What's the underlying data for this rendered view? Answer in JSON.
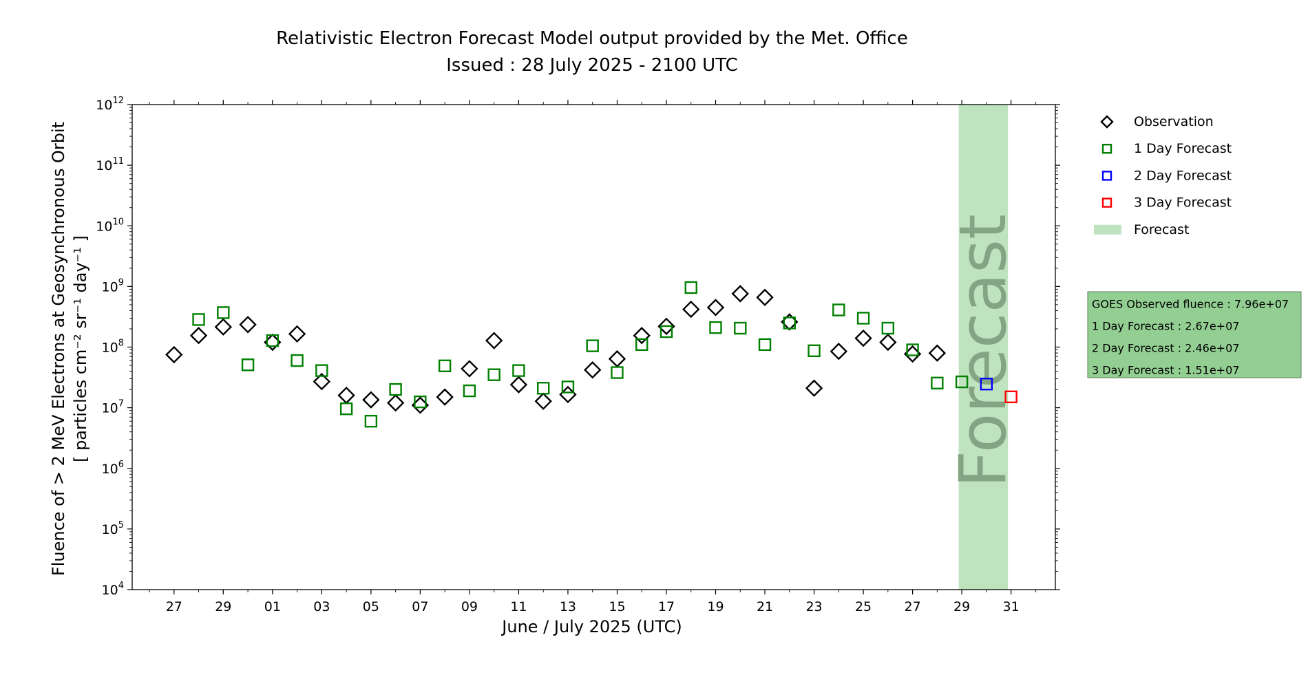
{
  "colors": {
    "observation": "#000000",
    "day1": "#008000",
    "day2": "#0000ff",
    "day3": "#ff0000",
    "forecast_band": "#bfe3bf",
    "forecast_word": "#7a9a7a",
    "info_box": "#93cf93"
  },
  "chart_data": {
    "type": "scatter",
    "title": "Relativistic Electron Forecast Model output provided by the Met. Office",
    "subtitle": "Issued : 28 July 2025 - 2100 UTC",
    "xlabel": "June / July 2025 (UTC)",
    "ylabel_line1": "Fluence of > 2 MeV Electrons at Geosynchronous Orbit",
    "ylabel_line2": "[ particles cm⁻² sr⁻¹ day⁻¹ ]",
    "y_scale": "log",
    "ylim": [
      10000,
      1000000000000
    ],
    "y_ticks": [
      {
        "value": 10000,
        "base": "10",
        "exp": "4"
      },
      {
        "value": 100000,
        "base": "10",
        "exp": "5"
      },
      {
        "value": 1000000,
        "base": "10",
        "exp": "6"
      },
      {
        "value": 10000000,
        "base": "10",
        "exp": "7"
      },
      {
        "value": 100000000,
        "base": "10",
        "exp": "8"
      },
      {
        "value": 1000000000,
        "base": "10",
        "exp": "9"
      },
      {
        "value": 10000000000,
        "base": "10",
        "exp": "10"
      },
      {
        "value": 100000000000,
        "base": "10",
        "exp": "11"
      },
      {
        "value": 1000000000000,
        "base": "10",
        "exp": "12"
      }
    ],
    "xlim": [
      "2025-06-25T07:12",
      "2025-08-01T19:12"
    ],
    "x_ticks": [
      {
        "date": "2025-06-27",
        "label": "27"
      },
      {
        "date": "2025-06-29",
        "label": "29"
      },
      {
        "date": "2025-07-01",
        "label": "01"
      },
      {
        "date": "2025-07-03",
        "label": "03"
      },
      {
        "date": "2025-07-05",
        "label": "05"
      },
      {
        "date": "2025-07-07",
        "label": "07"
      },
      {
        "date": "2025-07-09",
        "label": "09"
      },
      {
        "date": "2025-07-11",
        "label": "11"
      },
      {
        "date": "2025-07-13",
        "label": "13"
      },
      {
        "date": "2025-07-15",
        "label": "15"
      },
      {
        "date": "2025-07-17",
        "label": "17"
      },
      {
        "date": "2025-07-19",
        "label": "19"
      },
      {
        "date": "2025-07-21",
        "label": "21"
      },
      {
        "date": "2025-07-23",
        "label": "23"
      },
      {
        "date": "2025-07-25",
        "label": "25"
      },
      {
        "date": "2025-07-27",
        "label": "27"
      },
      {
        "date": "2025-07-29",
        "label": "29"
      },
      {
        "date": "2025-07-31",
        "label": "31"
      }
    ],
    "grid": false,
    "legend_position": "outside-right-top",
    "forecast_band": {
      "start": "2025-07-28T21:00",
      "end": "2025-07-30T21:00",
      "label": "Forecast"
    },
    "series": [
      {
        "name": "Observation",
        "marker": "diamond",
        "color": "#000000",
        "points": [
          {
            "x": "2025-06-27",
            "y": 75000000
          },
          {
            "x": "2025-06-28",
            "y": 155000000
          },
          {
            "x": "2025-06-29",
            "y": 215000000
          },
          {
            "x": "2025-06-30",
            "y": 235000000
          },
          {
            "x": "2025-07-01",
            "y": 120000000
          },
          {
            "x": "2025-07-02",
            "y": 165000000
          },
          {
            "x": "2025-07-03",
            "y": 27000000
          },
          {
            "x": "2025-07-04",
            "y": 16000000
          },
          {
            "x": "2025-07-05",
            "y": 13500000
          },
          {
            "x": "2025-07-06",
            "y": 12000000
          },
          {
            "x": "2025-07-07",
            "y": 11000000
          },
          {
            "x": "2025-07-08",
            "y": 15000000
          },
          {
            "x": "2025-07-09",
            "y": 44000000
          },
          {
            "x": "2025-07-10",
            "y": 128000000
          },
          {
            "x": "2025-07-11",
            "y": 24000000
          },
          {
            "x": "2025-07-12",
            "y": 12800000
          },
          {
            "x": "2025-07-13",
            "y": 16500000
          },
          {
            "x": "2025-07-14",
            "y": 42000000
          },
          {
            "x": "2025-07-15",
            "y": 64000000
          },
          {
            "x": "2025-07-16",
            "y": 155000000
          },
          {
            "x": "2025-07-17",
            "y": 220000000
          },
          {
            "x": "2025-07-18",
            "y": 420000000
          },
          {
            "x": "2025-07-19",
            "y": 450000000
          },
          {
            "x": "2025-07-20",
            "y": 760000000
          },
          {
            "x": "2025-07-21",
            "y": 660000000
          },
          {
            "x": "2025-07-22",
            "y": 260000000
          },
          {
            "x": "2025-07-23",
            "y": 21000000
          },
          {
            "x": "2025-07-24",
            "y": 85000000
          },
          {
            "x": "2025-07-25",
            "y": 140000000
          },
          {
            "x": "2025-07-26",
            "y": 120000000
          },
          {
            "x": "2025-07-27",
            "y": 77000000
          },
          {
            "x": "2025-07-28",
            "y": 79600000
          }
        ]
      },
      {
        "name": "1 Day Forecast",
        "marker": "square",
        "color": "#008000",
        "points": [
          {
            "x": "2025-06-28",
            "y": 285000000
          },
          {
            "x": "2025-06-29",
            "y": 370000000
          },
          {
            "x": "2025-06-30",
            "y": 51000000
          },
          {
            "x": "2025-07-01",
            "y": 128000000
          },
          {
            "x": "2025-07-02",
            "y": 60000000
          },
          {
            "x": "2025-07-03",
            "y": 41000000
          },
          {
            "x": "2025-07-04",
            "y": 9600000
          },
          {
            "x": "2025-07-05",
            "y": 6000000
          },
          {
            "x": "2025-07-06",
            "y": 20000000
          },
          {
            "x": "2025-07-07",
            "y": 12500000
          },
          {
            "x": "2025-07-08",
            "y": 49000000
          },
          {
            "x": "2025-07-09",
            "y": 19000000
          },
          {
            "x": "2025-07-10",
            "y": 35000000
          },
          {
            "x": "2025-07-11",
            "y": 41000000
          },
          {
            "x": "2025-07-12",
            "y": 21000000
          },
          {
            "x": "2025-07-13",
            "y": 22000000
          },
          {
            "x": "2025-07-14",
            "y": 105000000
          },
          {
            "x": "2025-07-15",
            "y": 38000000
          },
          {
            "x": "2025-07-16",
            "y": 110000000
          },
          {
            "x": "2025-07-17",
            "y": 180000000
          },
          {
            "x": "2025-07-18",
            "y": 960000000
          },
          {
            "x": "2025-07-19",
            "y": 210000000
          },
          {
            "x": "2025-07-20",
            "y": 205000000
          },
          {
            "x": "2025-07-21",
            "y": 110000000
          },
          {
            "x": "2025-07-22",
            "y": 250000000
          },
          {
            "x": "2025-07-23",
            "y": 87000000
          },
          {
            "x": "2025-07-24",
            "y": 410000000
          },
          {
            "x": "2025-07-25",
            "y": 300000000
          },
          {
            "x": "2025-07-26",
            "y": 205000000
          },
          {
            "x": "2025-07-27",
            "y": 90000000
          },
          {
            "x": "2025-07-28",
            "y": 25500000
          },
          {
            "x": "2025-07-29",
            "y": 26700000
          }
        ]
      },
      {
        "name": "2 Day Forecast",
        "marker": "square",
        "color": "#0000ff",
        "points": [
          {
            "x": "2025-07-30",
            "y": 24600000
          }
        ]
      },
      {
        "name": "3 Day Forecast",
        "marker": "square",
        "color": "#ff0000",
        "points": [
          {
            "x": "2025-07-31",
            "y": 15100000
          }
        ]
      }
    ]
  },
  "legend": {
    "items": [
      {
        "label": "Observation",
        "marker": "diamond",
        "color": "#000000"
      },
      {
        "label": "1 Day Forecast",
        "marker": "square",
        "color": "#008000"
      },
      {
        "label": "2 Day Forecast",
        "marker": "square",
        "color": "#0000ff"
      },
      {
        "label": "3 Day Forecast",
        "marker": "square",
        "color": "#ff0000"
      },
      {
        "label": "Forecast",
        "marker": "patch",
        "color": "#bfe3bf"
      }
    ]
  },
  "info_box": {
    "lines": [
      "GOES Observed fluence : 7.96e+07",
      "1 Day Forecast : 2.67e+07",
      "2 Day Forecast : 2.46e+07",
      "3 Day Forecast : 1.51e+07"
    ]
  }
}
